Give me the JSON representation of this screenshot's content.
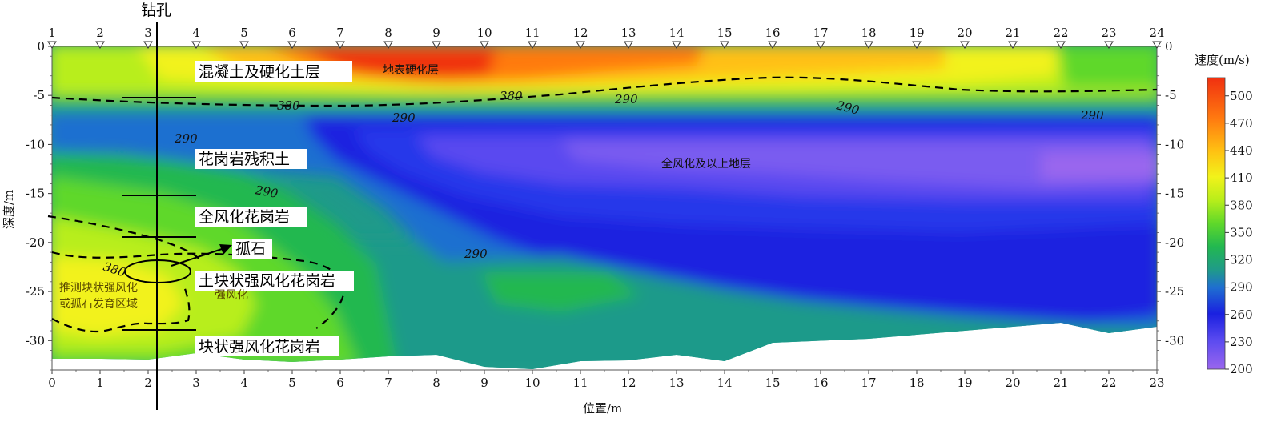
{
  "chart_data": {
    "type": "heatmap",
    "title": "钻孔",
    "xlabel": "位置/m",
    "ylabel": "深度/m",
    "xlim": [
      0,
      23
    ],
    "ylim": [
      -33,
      0
    ],
    "x_ticks": [
      "0",
      "1",
      "2",
      "3",
      "4",
      "5",
      "6",
      "7",
      "8",
      "9",
      "10",
      "11",
      "12",
      "13",
      "14",
      "15",
      "16",
      "17",
      "18",
      "19",
      "20",
      "21",
      "22",
      "23"
    ],
    "y_ticks": [
      "0",
      "-5",
      "-10",
      "-15",
      "-20",
      "-25",
      "-30"
    ],
    "y_ticks_right": [
      "0",
      "-5",
      "-10",
      "-15",
      "-20",
      "-25",
      "-30"
    ],
    "stations": [
      "1",
      "2",
      "3",
      "4",
      "5",
      "6",
      "7",
      "8",
      "9",
      "10",
      "11",
      "12",
      "13",
      "14",
      "15",
      "16",
      "17",
      "18",
      "19",
      "20",
      "21",
      "22",
      "23",
      "24"
    ],
    "borehole_x": 2.2,
    "colorbar": {
      "title": "速度(m/s)",
      "ticks": [
        "500",
        "470",
        "440",
        "410",
        "380",
        "350",
        "320",
        "290",
        "260",
        "230",
        "200"
      ],
      "min": 200,
      "max": 520,
      "colors": [
        "#9a66ee",
        "#5a4af0",
        "#1a20e0",
        "#1f6fd0",
        "#1f9a8a",
        "#22b850",
        "#5fd82a",
        "#b8ee1a",
        "#f2f21a",
        "#ffc012",
        "#ff7a10",
        "#f03010"
      ]
    },
    "contours": [
      {
        "value": 380,
        "label": "380"
      },
      {
        "value": 290,
        "label": "290"
      }
    ],
    "annotations": {
      "borehole_label": "钻孔",
      "layer1": "混凝土及硬化土层",
      "layer2": "花岗岩残积土",
      "layer3": "全风化花岗岩",
      "boulder": "孤石",
      "layer4": "土块状强风化花岗岩",
      "layer5": "块状强风化花岗岩",
      "surface_hard": "地表硬化层",
      "full_weathered": "全风化及以上地层",
      "strong_weathered": "强风化",
      "inferred_1": "推测块状强风化",
      "inferred_2": "或孤石发育区域",
      "c380_a": "380",
      "c380_b": "380",
      "c380_c": "380",
      "c290_a": "290",
      "c290_b": "290",
      "c290_c": "290",
      "c290_d": "290",
      "c290_e": "290",
      "c290_f": "290",
      "c290_g": "290"
    }
  }
}
